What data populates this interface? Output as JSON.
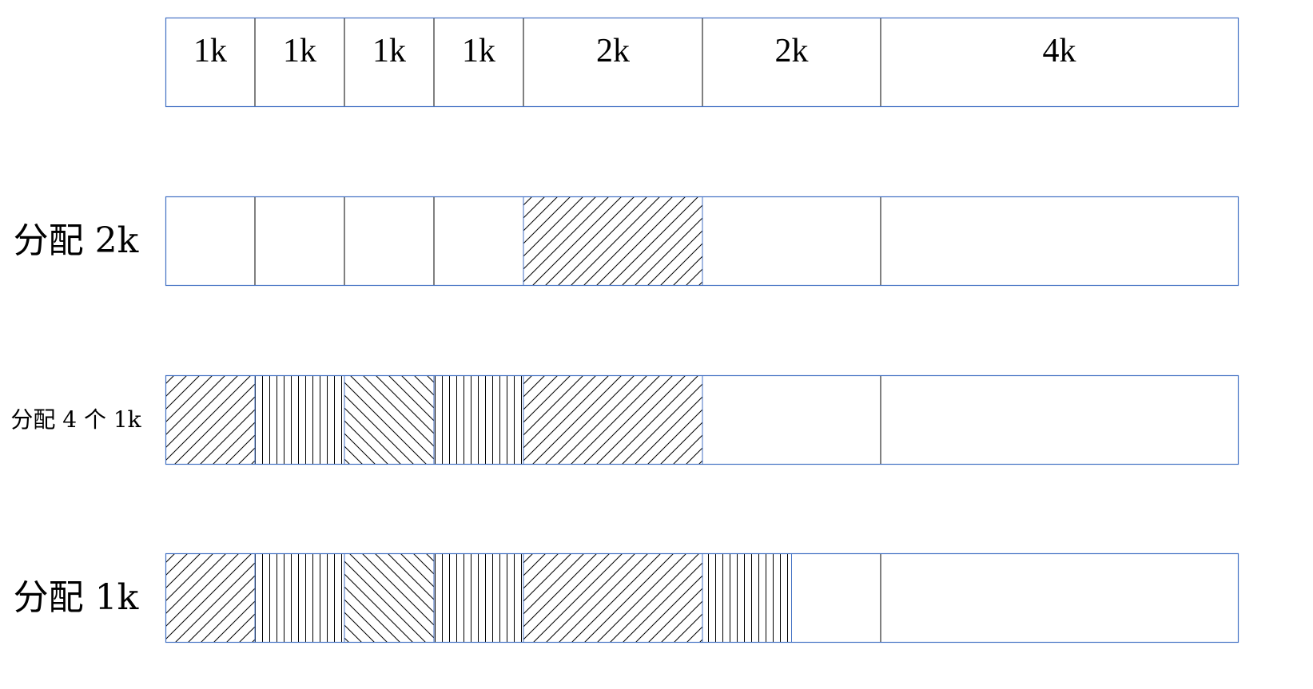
{
  "diagram": {
    "colors": {
      "outline": "#4472c4",
      "divider": "#000000",
      "hatch": "#000000",
      "background": "#ffffff"
    },
    "header_cells": [
      "1k",
      "1k",
      "1k",
      "1k",
      "2k",
      "2k",
      "4k"
    ],
    "rows": [
      {
        "label": "",
        "cells": [
          "empty",
          "empty",
          "empty",
          "empty",
          "empty",
          "empty",
          "empty"
        ],
        "partial": null
      },
      {
        "label": "分配 2k",
        "cells": [
          "empty",
          "empty",
          "empty",
          "empty",
          "diag-up",
          "empty",
          "empty"
        ],
        "partial": null
      },
      {
        "label": "分配 4 个 1k",
        "cells": [
          "diag-up",
          "vertical",
          "diag-down",
          "vertical",
          "diag-up",
          "empty",
          "empty"
        ],
        "partial": null
      },
      {
        "label": "分配 1k",
        "cells": [
          "diag-up",
          "vertical",
          "diag-down",
          "vertical",
          "diag-up",
          "empty",
          "empty"
        ],
        "partial": {
          "cell_index": 5,
          "fill_fraction": 0.5,
          "pattern": "vertical"
        }
      }
    ]
  }
}
